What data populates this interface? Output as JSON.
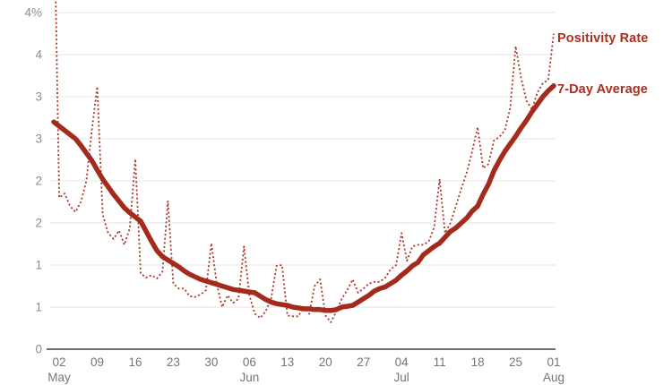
{
  "colors": {
    "solid_line": "#a32b1d",
    "dotted_line": "#ad3627",
    "legend_text": "#a8301f",
    "gridline": "#e5e5e5",
    "axis_line": "#6e6e6e",
    "y_tick_text": "#8c8c8c",
    "x_tick_text": "#757575",
    "background": "#ffffff"
  },
  "chart_data": {
    "type": "line",
    "title": "",
    "xlabel": "",
    "ylabel": "",
    "ylim": [
      0,
      4.15
    ],
    "grid": "horizontal",
    "legend_position": "right-of-line-ends",
    "x_unit": "days since May 01",
    "xlim_days": [
      0,
      92
    ],
    "y_gridlines": [
      {
        "value": 4.0,
        "label": "4%"
      },
      {
        "value": 3.5,
        "label": "4"
      },
      {
        "value": 3.0,
        "label": "3"
      },
      {
        "value": 2.5,
        "label": "3"
      },
      {
        "value": 2.0,
        "label": "2"
      },
      {
        "value": 1.5,
        "label": "2"
      },
      {
        "value": 1.0,
        "label": "1"
      },
      {
        "value": 0.5,
        "label": "1"
      },
      {
        "value": 0.0,
        "label": "0"
      }
    ],
    "x_ticks": [
      {
        "label": "02",
        "month": "May",
        "day": 1
      },
      {
        "label": "09",
        "month": "",
        "day": 8
      },
      {
        "label": "16",
        "month": "",
        "day": 15
      },
      {
        "label": "23",
        "month": "",
        "day": 22
      },
      {
        "label": "30",
        "month": "",
        "day": 29
      },
      {
        "label": "06",
        "month": "Jun",
        "day": 36
      },
      {
        "label": "13",
        "month": "",
        "day": 43
      },
      {
        "label": "20",
        "month": "",
        "day": 50
      },
      {
        "label": "27",
        "month": "",
        "day": 57
      },
      {
        "label": "04",
        "month": "Jul",
        "day": 64
      },
      {
        "label": "11",
        "month": "",
        "day": 71
      },
      {
        "label": "18",
        "month": "",
        "day": 78
      },
      {
        "label": "25",
        "month": "",
        "day": 85
      },
      {
        "label": "01",
        "month": "Aug",
        "day": 92
      }
    ],
    "series": [
      {
        "name": "Positivity Rate",
        "style": "dotted",
        "values": [
          5.5,
          1.8,
          1.85,
          1.7,
          1.63,
          1.75,
          2.0,
          2.6,
          3.12,
          1.6,
          1.38,
          1.31,
          1.41,
          1.24,
          1.44,
          2.26,
          0.9,
          0.85,
          0.88,
          0.84,
          0.92,
          1.76,
          0.78,
          0.72,
          0.72,
          0.63,
          0.62,
          0.65,
          0.7,
          1.26,
          0.77,
          0.5,
          0.64,
          0.55,
          0.6,
          1.22,
          0.64,
          0.42,
          0.37,
          0.45,
          0.6,
          0.99,
          1.0,
          0.4,
          0.39,
          0.39,
          0.5,
          0.42,
          0.75,
          0.83,
          0.4,
          0.32,
          0.45,
          0.6,
          0.7,
          0.83,
          0.67,
          0.72,
          0.78,
          0.8,
          0.8,
          0.85,
          0.95,
          1.0,
          1.38,
          1.05,
          1.22,
          1.24,
          1.24,
          1.28,
          1.45,
          2.02,
          1.38,
          1.5,
          1.7,
          1.91,
          2.1,
          2.35,
          2.64,
          2.15,
          2.2,
          2.48,
          2.52,
          2.6,
          2.87,
          3.6,
          3.22,
          2.95,
          2.85,
          3.05,
          3.16,
          3.2,
          3.75
        ]
      },
      {
        "name": "7-Day Average",
        "style": "solid",
        "values": [
          2.7,
          2.65,
          2.6,
          2.55,
          2.5,
          2.42,
          2.33,
          2.24,
          2.13,
          2.02,
          1.93,
          1.84,
          1.76,
          1.68,
          1.62,
          1.57,
          1.52,
          1.4,
          1.28,
          1.17,
          1.1,
          1.06,
          1.02,
          0.98,
          0.93,
          0.89,
          0.86,
          0.83,
          0.81,
          0.79,
          0.77,
          0.75,
          0.73,
          0.71,
          0.7,
          0.69,
          0.68,
          0.67,
          0.63,
          0.59,
          0.56,
          0.54,
          0.53,
          0.52,
          0.5,
          0.49,
          0.48,
          0.48,
          0.47,
          0.47,
          0.46,
          0.46,
          0.47,
          0.5,
          0.51,
          0.52,
          0.56,
          0.6,
          0.64,
          0.69,
          0.72,
          0.74,
          0.78,
          0.82,
          0.88,
          0.93,
          0.99,
          1.03,
          1.12,
          1.17,
          1.22,
          1.26,
          1.33,
          1.4,
          1.44,
          1.5,
          1.56,
          1.64,
          1.7,
          1.84,
          1.96,
          2.12,
          2.24,
          2.35,
          2.44,
          2.53,
          2.63,
          2.72,
          2.82,
          2.91,
          3.0,
          3.07,
          3.13
        ]
      }
    ]
  }
}
